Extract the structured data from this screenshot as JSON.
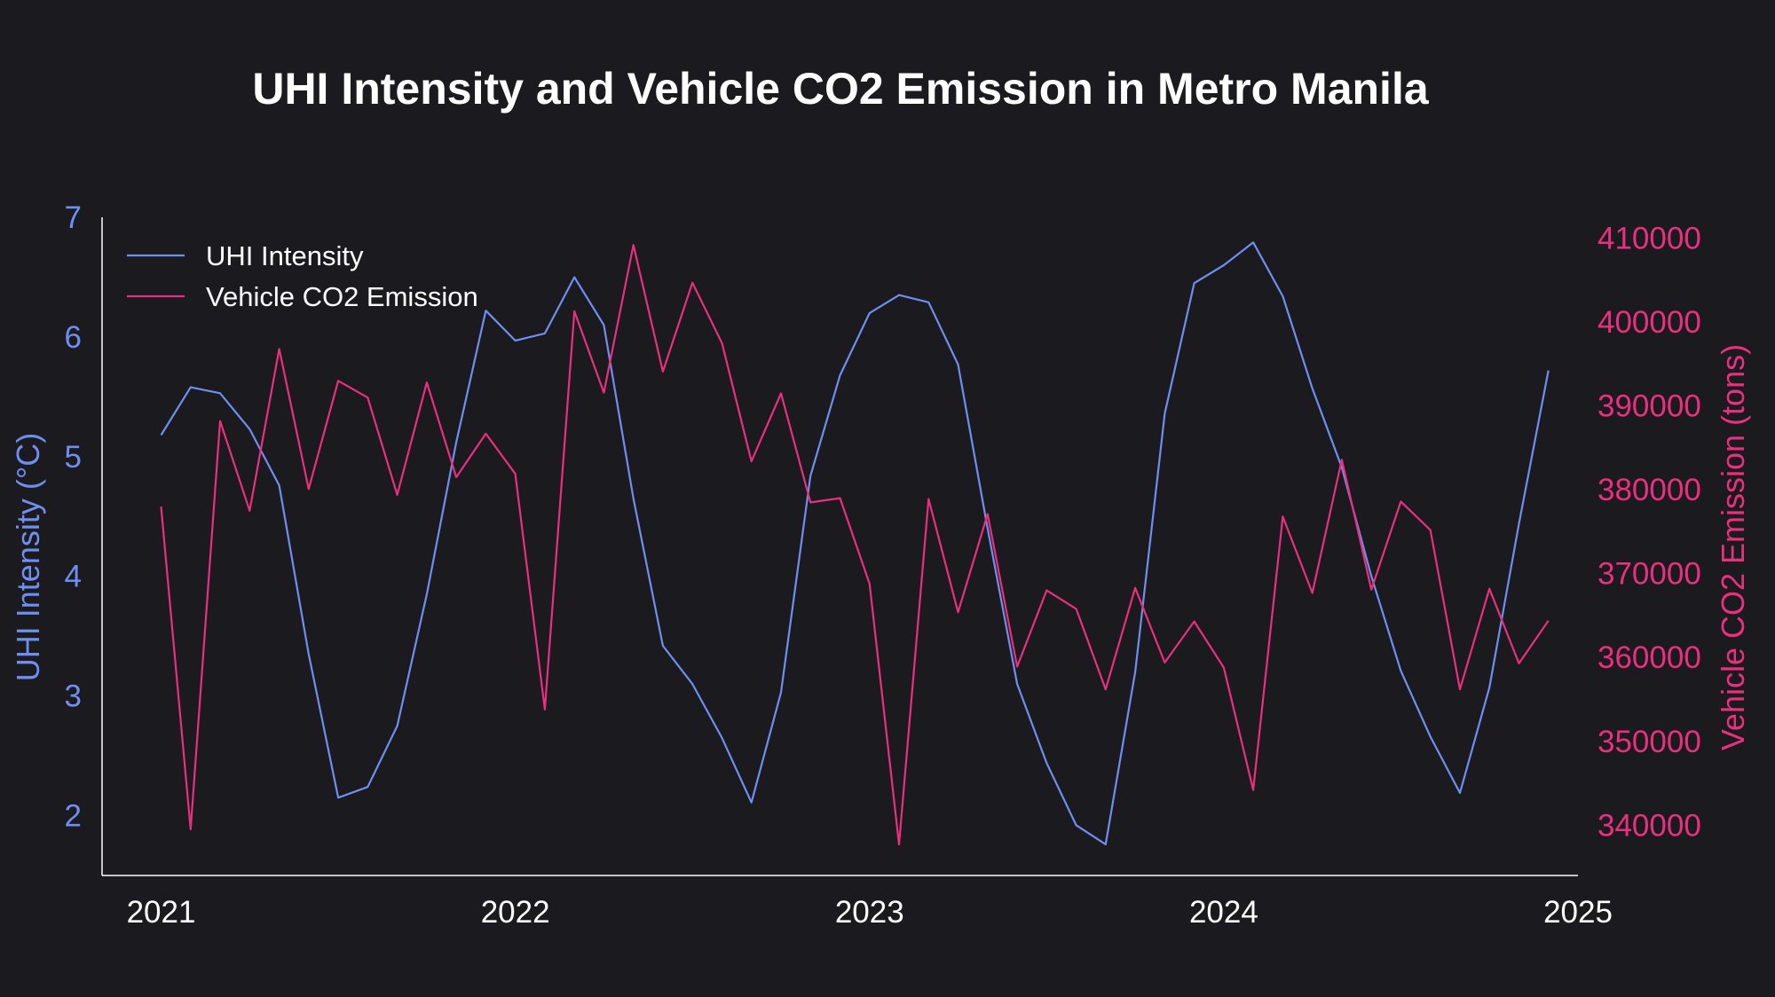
{
  "chart_data": {
    "type": "line",
    "title": "UHI Intensity and Vehicle CO2 Emission in Metro Manila",
    "xlabel": "",
    "x_start": "2021-01",
    "x_ticks": [
      "2021",
      "2022",
      "2023",
      "2024",
      "2025"
    ],
    "x_range": [
      "2020-11",
      "2025-01"
    ],
    "left_axis": {
      "label": "UHI Intensity (°C)",
      "ticks": [
        "2",
        "3",
        "4",
        "5",
        "6",
        "7"
      ],
      "range": [
        1.5,
        7.0
      ],
      "color": "#6f8ff0"
    },
    "right_axis": {
      "label": "Vehicle CO2 Emission (tons)",
      "ticks": [
        "340000",
        "350000",
        "360000",
        "370000",
        "380000",
        "390000",
        "400000",
        "410000"
      ],
      "range": [
        334000,
        412500
      ],
      "color": "#e8307f"
    },
    "legend_position": "upper-left",
    "grid": false,
    "series": [
      {
        "name": "UHI Intensity",
        "axis": "left",
        "color": "#6f8ff0",
        "values": [
          5.18,
          5.58,
          5.53,
          5.23,
          4.76,
          3.35,
          2.15,
          2.24,
          2.75,
          3.85,
          5.12,
          6.22,
          5.97,
          6.03,
          6.5,
          6.1,
          4.65,
          3.42,
          3.1,
          2.65,
          2.11,
          3.03,
          4.84,
          5.68,
          6.2,
          6.35,
          6.29,
          5.77,
          4.4,
          3.1,
          2.44,
          1.92,
          1.76,
          3.2,
          5.36,
          6.45,
          6.6,
          6.79,
          6.34,
          5.57,
          4.91,
          4.0,
          3.21,
          2.66,
          2.19,
          3.07,
          4.44,
          5.72
        ]
      },
      {
        "name": "Vehicle CO2 Emission",
        "axis": "right",
        "color": "#e8307f",
        "values": [
          378000,
          339500,
          388200,
          377500,
          396800,
          380100,
          393000,
          391000,
          379400,
          392800,
          381500,
          386700,
          381900,
          353800,
          401300,
          391600,
          409200,
          394100,
          404700,
          397500,
          383400,
          391500,
          378500,
          379000,
          368800,
          337700,
          378900,
          365400,
          377100,
          358900,
          368000,
          365800,
          356200,
          368300,
          359400,
          364300,
          358800,
          344200,
          376800,
          367700,
          383600,
          368100,
          378600,
          375200,
          356200,
          368200,
          359300,
          364400
        ]
      }
    ]
  }
}
